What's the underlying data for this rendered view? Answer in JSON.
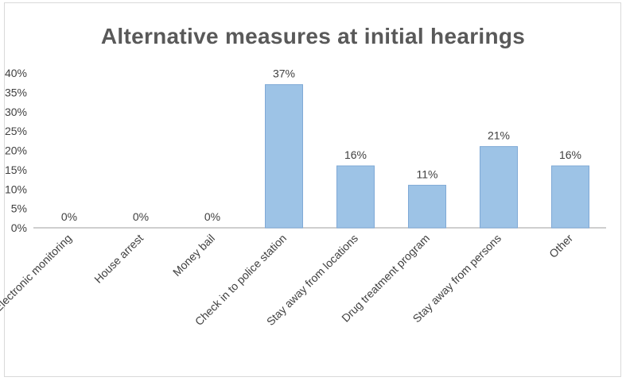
{
  "chart_data": {
    "type": "bar",
    "title": "Alternative measures at initial hearings",
    "categories": [
      "Electronic monitoring",
      "House arrest",
      "Money bail",
      "Check in to police station",
      "Stay away from locations",
      "Drug treatment program",
      "Stay away from persons",
      "Other"
    ],
    "values": [
      0,
      0,
      0,
      37,
      16,
      11,
      21,
      16
    ],
    "data_labels": [
      "0%",
      "0%",
      "0%",
      "37%",
      "16%",
      "11%",
      "21%",
      "16%"
    ],
    "y_ticks": [
      "0%",
      "5%",
      "10%",
      "15%",
      "20%",
      "25%",
      "30%",
      "35%",
      "40%"
    ],
    "ylim": [
      0,
      40
    ],
    "grid": false,
    "legend": "none",
    "bar_color": "#9dc3e6",
    "bar_edge_color": "#7fa9d6"
  }
}
